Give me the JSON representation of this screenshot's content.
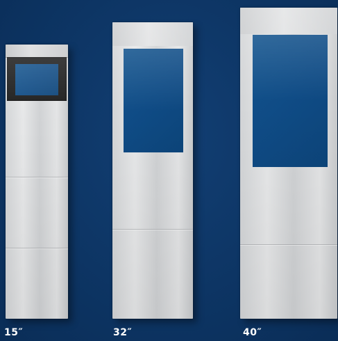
{
  "kiosks": [
    {
      "size_label": "15″"
    },
    {
      "size_label": "32″"
    },
    {
      "size_label": "40″"
    }
  ],
  "colors": {
    "background": "#0e3868",
    "screen": "#0f4b85",
    "bezel": "#1a1a1a",
    "body": "#dcdddf",
    "label": "#ffffff"
  }
}
